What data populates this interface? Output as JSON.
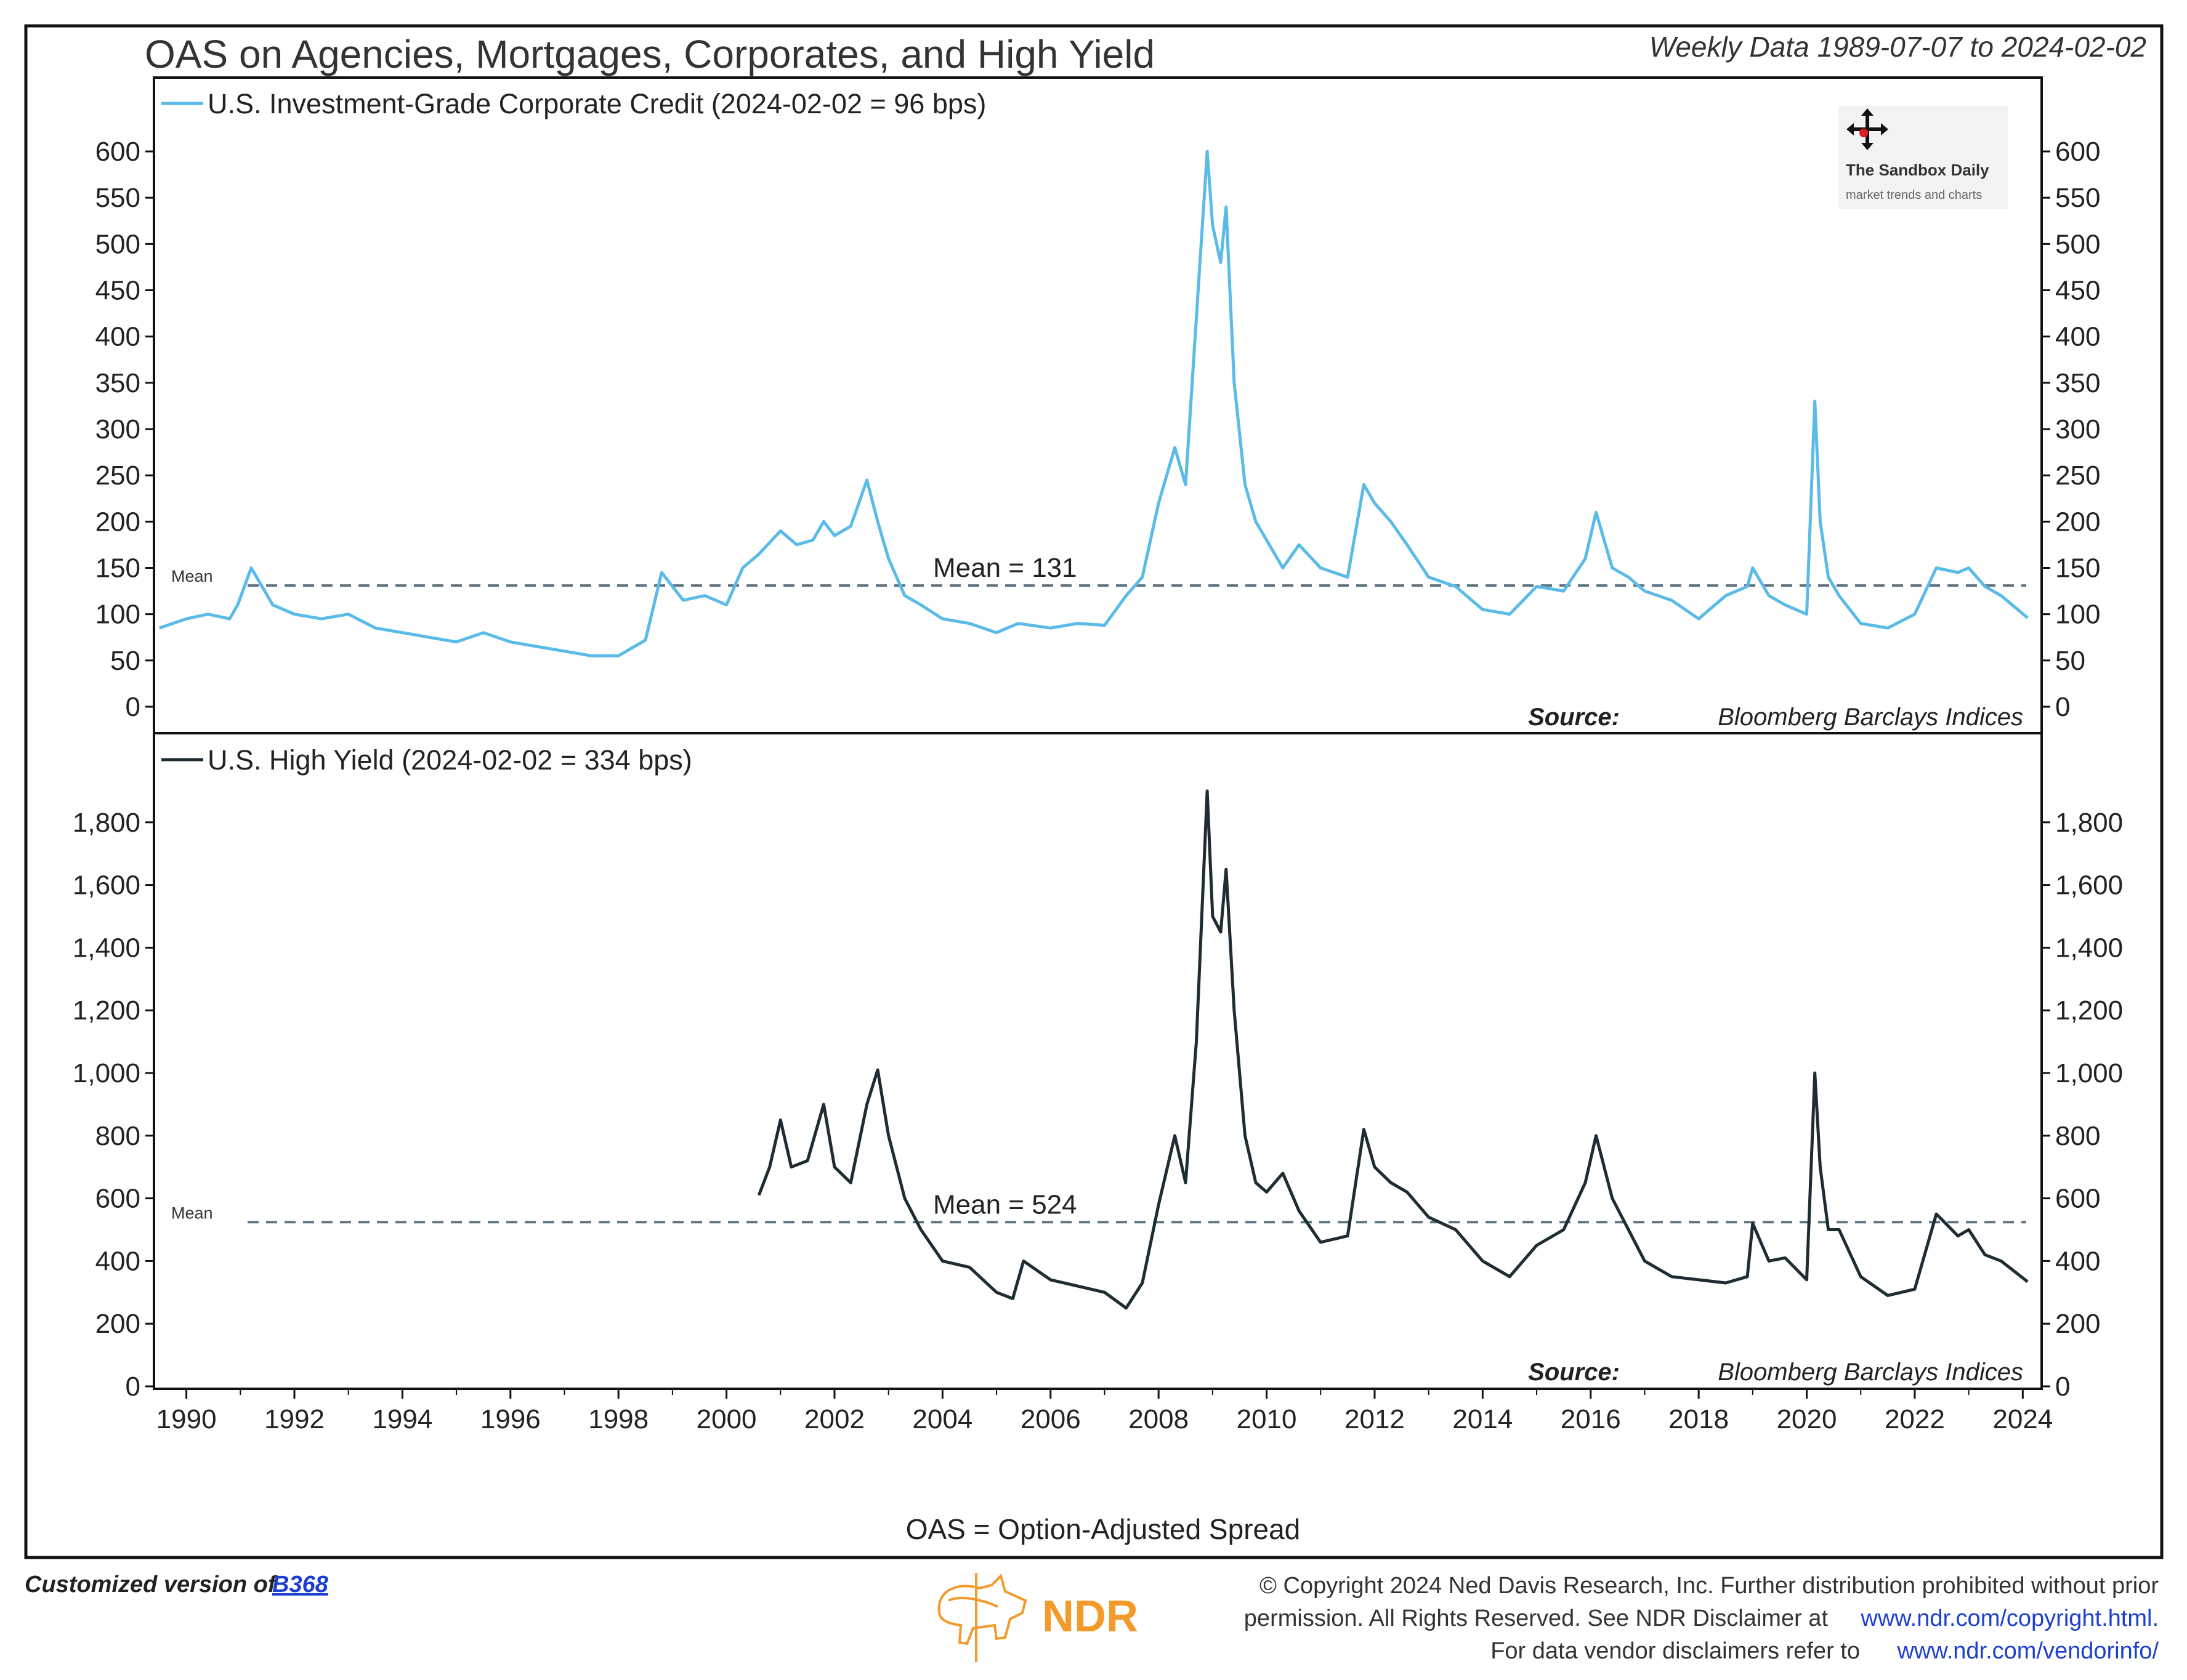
{
  "header": {
    "title": "OAS on Agencies, Mortgages, Corporates, and High Yield",
    "range": "Weekly Data 1989-07-07 to 2024-02-02"
  },
  "watermark": {
    "name": "The Sandbox Daily",
    "tagline": "market trends and charts"
  },
  "footnote": "OAS = Option-Adjusted Spread",
  "footer": {
    "custom_prefix": "Customized version of",
    "custom_link": "B368",
    "logo_text": "NDR",
    "copyright_line1": "© Copyright 2024 Ned Davis Research, Inc. Further distribution prohibited without prior",
    "copyright_line2_text": "permission. All Rights Reserved. See NDR Disclaimer at",
    "copyright_line2_link": "www.ndr.com/copyright.html.",
    "copyright_line3_text": "For data vendor disclaimers refer to",
    "copyright_line3_link": "www.ndr.com/vendorinfo/"
  },
  "colors": {
    "ig": "#5bbbe8",
    "hy": "#1e2d33",
    "mean_line": "#5f7480",
    "accent_orange": "#f39a2b",
    "link": "#1d3fd1"
  },
  "chart_data": [
    {
      "type": "line",
      "panel": "top",
      "legend": "U.S. Investment-Grade Corporate Credit (2024-02-02 = 96 bps)",
      "series_name": "U.S. Investment-Grade Corporate Credit",
      "ylim": [
        0,
        600
      ],
      "yticks": [
        0,
        50,
        100,
        150,
        200,
        250,
        300,
        350,
        400,
        450,
        500,
        550,
        600
      ],
      "ytick_labels": [
        "0",
        "50",
        "100",
        "150",
        "200",
        "250",
        "300",
        "350",
        "400",
        "450",
        "500",
        "550",
        "600"
      ],
      "mean": 131,
      "mean_label": "Mean = 131",
      "mean_tag": "Mean",
      "source_label": "Source:",
      "source_text": "Bloomberg Barclays Indices",
      "x": [
        1989.5,
        1990.0,
        1990.4,
        1990.8,
        1990.95,
        1991.2,
        1991.6,
        1992.0,
        1992.5,
        1993.0,
        1993.5,
        1994.0,
        1994.5,
        1995.0,
        1995.5,
        1996.0,
        1996.5,
        1997.0,
        1997.5,
        1998.0,
        1998.5,
        1998.8,
        1999.2,
        1999.6,
        2000.0,
        2000.3,
        2000.6,
        2001.0,
        2001.3,
        2001.6,
        2001.8,
        2002.0,
        2002.3,
        2002.6,
        2002.8,
        2003.0,
        2003.3,
        2003.6,
        2004.0,
        2004.5,
        2005.0,
        2005.4,
        2006.0,
        2006.5,
        2007.0,
        2007.4,
        2007.7,
        2008.0,
        2008.3,
        2008.5,
        2008.7,
        2008.9,
        2009.0,
        2009.15,
        2009.25,
        2009.4,
        2009.6,
        2009.8,
        2010.0,
        2010.3,
        2010.6,
        2011.0,
        2011.5,
        2011.8,
        2012.0,
        2012.3,
        2012.6,
        2013.0,
        2013.5,
        2014.0,
        2014.5,
        2015.0,
        2015.5,
        2015.9,
        2016.1,
        2016.4,
        2016.7,
        2017.0,
        2017.5,
        2018.0,
        2018.5,
        2018.9,
        2019.0,
        2019.3,
        2019.6,
        2020.0,
        2020.15,
        2020.25,
        2020.4,
        2020.6,
        2021.0,
        2021.5,
        2022.0,
        2022.4,
        2022.8,
        2023.0,
        2023.3,
        2023.6,
        2024.09
      ],
      "y": [
        85,
        95,
        100,
        95,
        110,
        150,
        110,
        100,
        95,
        100,
        85,
        80,
        75,
        70,
        80,
        70,
        65,
        60,
        55,
        55,
        72,
        145,
        115,
        120,
        110,
        150,
        165,
        190,
        175,
        180,
        200,
        185,
        195,
        245,
        200,
        160,
        120,
        110,
        95,
        90,
        80,
        90,
        85,
        90,
        88,
        120,
        140,
        220,
        280,
        240,
        420,
        600,
        520,
        480,
        540,
        350,
        240,
        200,
        180,
        150,
        175,
        150,
        140,
        240,
        220,
        200,
        175,
        140,
        130,
        105,
        100,
        130,
        125,
        160,
        210,
        150,
        140,
        125,
        115,
        95,
        120,
        130,
        150,
        120,
        110,
        100,
        330,
        200,
        140,
        120,
        90,
        85,
        100,
        150,
        145,
        150,
        130,
        120,
        96
      ],
      "xticks": [
        1990,
        1992,
        1994,
        1996,
        1998,
        2000,
        2002,
        2004,
        2006,
        2008,
        2010,
        2012,
        2014,
        2016,
        2018,
        2020,
        2022,
        2024
      ],
      "xtick_labels": [
        "1990",
        "1992",
        "1994",
        "1996",
        "1998",
        "2000",
        "2002",
        "2004",
        "2006",
        "2008",
        "2010",
        "2012",
        "2014",
        "2016",
        "2018",
        "2020",
        "2022",
        "2024"
      ]
    },
    {
      "type": "line",
      "panel": "bottom",
      "legend": "U.S. High Yield (2024-02-02 = 334 bps)",
      "series_name": "U.S. High Yield",
      "ylim": [
        0,
        2000
      ],
      "yticks": [
        0,
        200,
        400,
        600,
        800,
        1000,
        1200,
        1400,
        1600,
        1800
      ],
      "ytick_labels": [
        "0",
        "200",
        "400",
        "600",
        "800",
        "1,000",
        "1,200",
        "1,400",
        "1,600",
        "1,800"
      ],
      "mean": 524,
      "mean_label": "Mean = 524",
      "mean_tag": "Mean",
      "source_label": "Source:",
      "source_text": "Bloomberg Barclays Indices",
      "x": [
        2000.6,
        2000.8,
        2001.0,
        2001.2,
        2001.5,
        2001.8,
        2002.0,
        2002.3,
        2002.6,
        2002.8,
        2003.0,
        2003.3,
        2003.6,
        2004.0,
        2004.5,
        2005.0,
        2005.3,
        2005.5,
        2006.0,
        2006.5,
        2007.0,
        2007.4,
        2007.7,
        2008.0,
        2008.3,
        2008.5,
        2008.7,
        2008.9,
        2009.0,
        2009.15,
        2009.25,
        2009.4,
        2009.6,
        2009.8,
        2010.0,
        2010.3,
        2010.6,
        2011.0,
        2011.5,
        2011.8,
        2012.0,
        2012.3,
        2012.6,
        2013.0,
        2013.5,
        2014.0,
        2014.5,
        2015.0,
        2015.5,
        2015.9,
        2016.1,
        2016.4,
        2016.7,
        2017.0,
        2017.5,
        2018.0,
        2018.5,
        2018.9,
        2019.0,
        2019.3,
        2019.6,
        2020.0,
        2020.15,
        2020.25,
        2020.4,
        2020.6,
        2021.0,
        2021.5,
        2022.0,
        2022.4,
        2022.8,
        2023.0,
        2023.3,
        2023.6,
        2024.09
      ],
      "y": [
        610,
        700,
        850,
        700,
        720,
        900,
        700,
        650,
        900,
        1010,
        800,
        600,
        500,
        400,
        380,
        300,
        280,
        400,
        340,
        320,
        300,
        250,
        330,
        580,
        800,
        650,
        1100,
        1900,
        1500,
        1450,
        1650,
        1200,
        800,
        650,
        620,
        680,
        560,
        460,
        480,
        820,
        700,
        650,
        620,
        540,
        500,
        400,
        350,
        450,
        500,
        650,
        800,
        600,
        500,
        400,
        350,
        340,
        330,
        350,
        520,
        400,
        410,
        340,
        1000,
        700,
        500,
        500,
        350,
        290,
        310,
        550,
        480,
        500,
        420,
        400,
        334
      ],
      "xticks": [
        1990,
        1992,
        1994,
        1996,
        1998,
        2000,
        2002,
        2004,
        2006,
        2008,
        2010,
        2012,
        2014,
        2016,
        2018,
        2020,
        2022,
        2024
      ],
      "xtick_labels": [
        "1990",
        "1992",
        "1994",
        "1996",
        "1998",
        "2000",
        "2002",
        "2004",
        "2006",
        "2008",
        "2010",
        "2012",
        "2014",
        "2016",
        "2018",
        "2020",
        "2022",
        "2024"
      ]
    }
  ]
}
